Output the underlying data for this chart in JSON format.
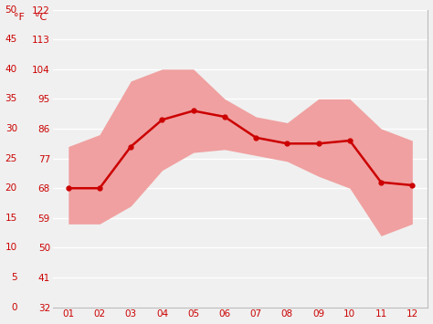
{
  "months": [
    1,
    2,
    3,
    4,
    5,
    6,
    7,
    8,
    9,
    10,
    11,
    12
  ],
  "month_labels": [
    "01",
    "02",
    "03",
    "04",
    "05",
    "06",
    "07",
    "08",
    "09",
    "10",
    "11",
    "12"
  ],
  "mean_temp_c": [
    20,
    20,
    27,
    31.5,
    33,
    32,
    28.5,
    27.5,
    27.5,
    28,
    21,
    20.5
  ],
  "max_temp_c": [
    27,
    29,
    38,
    40,
    40,
    35,
    32,
    31,
    35,
    35,
    30,
    28
  ],
  "min_temp_c": [
    14,
    14,
    17,
    23,
    26,
    26.5,
    25.5,
    24.5,
    22,
    20,
    12,
    14
  ],
  "line_color": "#cc0000",
  "band_color": "#f0a0a0",
  "background_color": "#f0f0f0",
  "grid_color": "#ffffff",
  "tick_color": "#cc0000",
  "label_f": "°F",
  "label_c": "°C",
  "yticks_c": [
    0,
    5,
    10,
    15,
    20,
    25,
    30,
    35,
    40,
    45,
    50
  ],
  "yticks_f": [
    32,
    41,
    50,
    59,
    68,
    77,
    86,
    95,
    104,
    113,
    122
  ],
  "ylim_c": [
    0,
    50
  ],
  "xlim": [
    0.5,
    12.5
  ]
}
